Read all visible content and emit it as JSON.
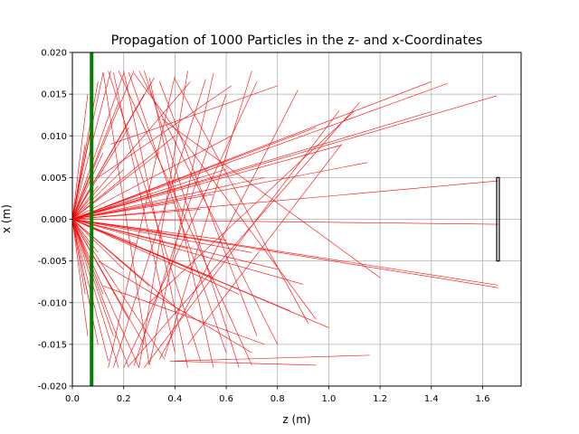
{
  "chart_data": {
    "type": "line",
    "title": "Propagation of 1000 Particles in the z- and x-Coordinates",
    "xlabel": "z (m)",
    "ylabel": "x (m)",
    "xlim": [
      0.0,
      1.75
    ],
    "ylim": [
      -0.02,
      0.02
    ],
    "xticks": [
      "0.0",
      "0.2",
      "0.4",
      "0.6",
      "0.8",
      "1.0",
      "1.2",
      "1.4",
      "1.6"
    ],
    "yticks": [
      "0.020",
      "0.015",
      "0.010",
      "0.005",
      "0.000",
      "-0.005",
      "-0.010",
      "-0.015",
      "-0.020"
    ],
    "grid": true,
    "trajectory_color": "#ff0000",
    "screen_color": "#008000",
    "detector_color": "#000000",
    "screen": {
      "z": 0.075,
      "x_range": [
        -0.02,
        0.02
      ]
    },
    "detector": {
      "z": [
        1.655,
        1.665
      ],
      "x_range": [
        -0.005,
        0.005
      ]
    },
    "trajectories": [
      {
        "x": [
          0.0,
          1.66
        ],
        "y": [
          0.0,
          0.0046
        ]
      },
      {
        "x": [
          0.0,
          1.66
        ],
        "y": [
          0.0,
          -0.0006
        ]
      },
      {
        "x": [
          0.0,
          1.66
        ],
        "y": [
          0.0,
          -0.0079
        ]
      },
      {
        "x": [
          0.0,
          1.66
        ],
        "y": [
          0.0,
          -0.0082
        ]
      },
      {
        "x": [
          0.0,
          1.655
        ],
        "y": [
          0.0,
          0.0148
        ]
      },
      {
        "x": [
          0.0,
          1.465
        ],
        "y": [
          0.0,
          0.0163
        ]
      },
      {
        "x": [
          0.0,
          1.4
        ],
        "y": [
          0.0,
          0.0165
        ]
      },
      {
        "x": [
          0.0,
          1.4
        ],
        "y": [
          0.0,
          0.0129
        ]
      },
      {
        "x": [
          0.0,
          1.05
        ],
        "y": [
          0.0,
          0.0089
        ]
      },
      {
        "x": [
          0.0,
          1.15
        ],
        "y": [
          0.0,
          0.0068
        ]
      },
      {
        "x": [
          0.0,
          0.9
        ],
        "y": [
          0.0,
          -0.0078
        ]
      },
      {
        "x": [
          0.0,
          0.8
        ],
        "y": [
          0.0,
          -0.006
        ]
      },
      {
        "x": [
          0.0,
          0.7
        ],
        "y": [
          0.0,
          -0.004
        ]
      },
      {
        "x": [
          0.0,
          0.6
        ],
        "y": [
          0.0,
          -0.0025
        ]
      },
      {
        "x": [
          0.0,
          0.55
        ],
        "y": [
          0.0,
          0.003
        ]
      },
      {
        "x": [
          0.0,
          0.75
        ],
        "y": [
          0.0,
          0.005
        ]
      },
      {
        "x": [
          0.0,
          0.45
        ],
        "y": [
          0.0,
          -0.0035
        ]
      },
      {
        "x": [
          0.0,
          0.5
        ],
        "y": [
          0.0,
          0.0012
        ]
      },
      {
        "x": [
          0.0,
          0.35
        ],
        "y": [
          0.0,
          -0.0015
        ]
      },
      {
        "x": [
          0.0,
          0.4
        ],
        "y": [
          0.0,
          0.002
        ]
      },
      {
        "x": [
          0.0,
          0.3
        ],
        "y": [
          0.0,
          0.003
        ]
      },
      {
        "x": [
          0.0,
          0.25
        ],
        "y": [
          0.0,
          -0.003
        ]
      },
      {
        "x": [
          0.0,
          0.65
        ],
        "y": [
          0.0,
          -0.009
        ]
      },
      {
        "x": [
          0.0,
          0.62
        ],
        "y": [
          0.0,
          0.01
        ]
      },
      {
        "x": [
          0.0,
          0.46
        ],
        "y": [
          0.0,
          0.0165
        ]
      },
      {
        "x": [
          0.0,
          0.32
        ],
        "y": [
          0.0,
          0.017
        ]
      },
      {
        "x": [
          0.0,
          0.2
        ],
        "y": [
          0.0,
          0.0175
        ]
      },
      {
        "x": [
          0.0,
          0.15
        ],
        "y": [
          0.0,
          0.0178
        ]
      },
      {
        "x": [
          0.0,
          0.12
        ],
        "y": [
          0.0,
          0.0176
        ]
      },
      {
        "x": [
          0.0,
          0.1
        ],
        "y": [
          0.0,
          0.0165
        ]
      },
      {
        "x": [
          0.0,
          0.18
        ],
        "y": [
          0.0,
          -0.0178
        ]
      },
      {
        "x": [
          0.0,
          0.14
        ],
        "y": [
          0.0,
          -0.017
        ]
      },
      {
        "x": [
          0.0,
          0.1
        ],
        "y": [
          0.0,
          -0.015
        ]
      },
      {
        "x": [
          0.0,
          0.26
        ],
        "y": [
          0.0,
          -0.0178
        ]
      },
      {
        "x": [
          0.0,
          0.36
        ],
        "y": [
          0.0,
          -0.0168
        ]
      },
      {
        "x": [
          0.0,
          0.08
        ],
        "y": [
          0.0,
          0.012
        ]
      },
      {
        "x": [
          0.0,
          0.08
        ],
        "y": [
          0.0,
          -0.012
        ]
      },
      {
        "x": [
          0.0,
          0.12
        ],
        "y": [
          0.0,
          0.008
        ]
      },
      {
        "x": [
          0.0,
          0.12
        ],
        "y": [
          0.0,
          -0.009
        ]
      },
      {
        "x": [
          0.0,
          0.22
        ],
        "y": [
          0.0,
          0.011
        ]
      },
      {
        "x": [
          0.0,
          0.22
        ],
        "y": [
          0.0,
          -0.012
        ]
      },
      {
        "x": [
          0.0,
          0.28
        ],
        "y": [
          0.0,
          0.015
        ]
      },
      {
        "x": [
          0.0,
          0.28
        ],
        "y": [
          0.0,
          -0.015
        ]
      },
      {
        "x": [
          0.0,
          0.2
        ],
        "y": [
          0.0,
          0.006
        ]
      },
      {
        "x": [
          0.0,
          0.2
        ],
        "y": [
          0.0,
          -0.006
        ]
      },
      {
        "x": [
          0.0,
          0.18
        ],
        "y": [
          0.0,
          0.014
        ]
      },
      {
        "x": [
          0.0,
          0.16
        ],
        "y": [
          0.0,
          -0.014
        ]
      },
      {
        "x": [
          0.0,
          0.24
        ],
        "y": [
          0.0,
          0.0178
        ]
      },
      {
        "x": [
          0.0,
          0.22
        ],
        "y": [
          0.0,
          -0.0178
        ]
      },
      {
        "x": [
          0.0,
          0.4
        ],
        "y": [
          0.0,
          0.01
        ]
      },
      {
        "x": [
          0.0,
          0.42
        ],
        "y": [
          0.0,
          -0.011
        ]
      },
      {
        "x": [
          0.0,
          0.1
        ],
        "y": [
          0.0,
          0.004
        ]
      },
      {
        "x": [
          0.0,
          0.1
        ],
        "y": [
          0.0,
          -0.004
        ]
      },
      {
        "x": [
          0.0,
          0.3
        ],
        "y": [
          0.0,
          -0.008
        ]
      },
      {
        "x": [
          0.0,
          0.34
        ],
        "y": [
          0.0,
          0.008
        ]
      },
      {
        "x": [
          0.0,
          0.6
        ],
        "y": [
          0.0,
          0.006
        ]
      },
      {
        "x": [
          0.0,
          0.55
        ],
        "y": [
          0.0,
          -0.007
        ]
      },
      {
        "x": [
          0.0,
          1.0
        ],
        "y": [
          0.0,
          -0.013
        ]
      },
      {
        "x": [
          0.0,
          0.85
        ],
        "y": [
          0.0,
          -0.011
        ]
      },
      {
        "x": [
          0.0,
          0.95
        ],
        "y": [
          0.0,
          0.011
        ]
      },
      {
        "x": [
          0.0,
          0.05
        ],
        "y": [
          0.0,
          0.009
        ]
      },
      {
        "x": [
          0.0,
          0.05
        ],
        "y": [
          0.0,
          -0.009
        ]
      },
      {
        "x": [
          0.0,
          0.06
        ],
        "y": [
          0.0,
          0.015
        ]
      },
      {
        "x": [
          0.0,
          0.06
        ],
        "y": [
          0.0,
          -0.014
        ]
      },
      {
        "x": [
          0.18,
          0.7
        ],
        "y": [
          0.0178,
          -0.0175
        ]
      },
      {
        "x": [
          0.22,
          0.6
        ],
        "y": [
          0.0176,
          -0.016
        ]
      },
      {
        "x": [
          0.26,
          0.8
        ],
        "y": [
          0.0178,
          -0.015
        ]
      },
      {
        "x": [
          0.3,
          0.55
        ],
        "y": [
          0.017,
          -0.0178
        ]
      },
      {
        "x": [
          0.14,
          0.5
        ],
        "y": [
          0.0178,
          -0.017
        ]
      },
      {
        "x": [
          0.2,
          0.45
        ],
        "y": [
          0.0178,
          -0.0178
        ]
      },
      {
        "x": [
          0.34,
          0.72
        ],
        "y": [
          0.0165,
          -0.014
        ]
      },
      {
        "x": [
          0.16,
          0.4
        ],
        "y": [
          0.0176,
          -0.016
        ]
      },
      {
        "x": [
          0.28,
          0.65
        ],
        "y": [
          0.0178,
          -0.0178
        ]
      },
      {
        "x": [
          0.24,
          0.95
        ],
        "y": [
          0.0175,
          -0.012
        ]
      },
      {
        "x": [
          0.12,
          0.3
        ],
        "y": [
          0.0176,
          -0.0175
        ]
      },
      {
        "x": [
          0.4,
          0.92
        ],
        "y": [
          0.0168,
          -0.0125
        ]
      },
      {
        "x": [
          0.2,
          0.72
        ],
        "y": [
          -0.0178,
          0.0165
        ]
      },
      {
        "x": [
          0.24,
          0.6
        ],
        "y": [
          -0.0176,
          0.015
        ]
      },
      {
        "x": [
          0.28,
          1.04
        ],
        "y": [
          -0.0178,
          0.013
        ]
      },
      {
        "x": [
          0.3,
          0.55
        ],
        "y": [
          -0.0175,
          0.0175
        ]
      },
      {
        "x": [
          0.16,
          0.52
        ],
        "y": [
          -0.0178,
          0.0168
        ]
      },
      {
        "x": [
          0.34,
          0.88
        ],
        "y": [
          -0.0168,
          0.0155
        ]
      },
      {
        "x": [
          0.26,
          0.45
        ],
        "y": [
          -0.0178,
          0.0178
        ]
      },
      {
        "x": [
          0.22,
          1.12
        ],
        "y": [
          -0.0176,
          0.014
        ]
      },
      {
        "x": [
          0.36,
          0.7
        ],
        "y": [
          -0.0165,
          0.0178
        ]
      },
      {
        "x": [
          0.14,
          0.4
        ],
        "y": [
          -0.0178,
          0.0172
        ]
      },
      {
        "x": [
          0.4,
          1.16
        ],
        "y": [
          -0.017,
          -0.0163
        ]
      },
      {
        "x": [
          0.38,
          0.95
        ],
        "y": [
          -0.017,
          -0.0175
        ]
      },
      {
        "x": [
          0.1,
          0.62
        ],
        "y": [
          0.005,
          0.016
        ]
      },
      {
        "x": [
          0.1,
          0.7
        ],
        "y": [
          -0.005,
          -0.016
        ]
      },
      {
        "x": [
          0.15,
          0.8
        ],
        "y": [
          0.009,
          0.016
        ]
      },
      {
        "x": [
          0.12,
          0.75
        ],
        "y": [
          -0.008,
          -0.015
        ]
      },
      {
        "x": [
          0.3,
          1.1
        ],
        "y": [
          -0.01,
          0.013
        ]
      },
      {
        "x": [
          0.35,
          1.2
        ],
        "y": [
          0.012,
          -0.007
        ]
      },
      {
        "x": [
          0.45,
          1.05
        ],
        "y": [
          -0.015,
          0.009
        ]
      }
    ]
  }
}
